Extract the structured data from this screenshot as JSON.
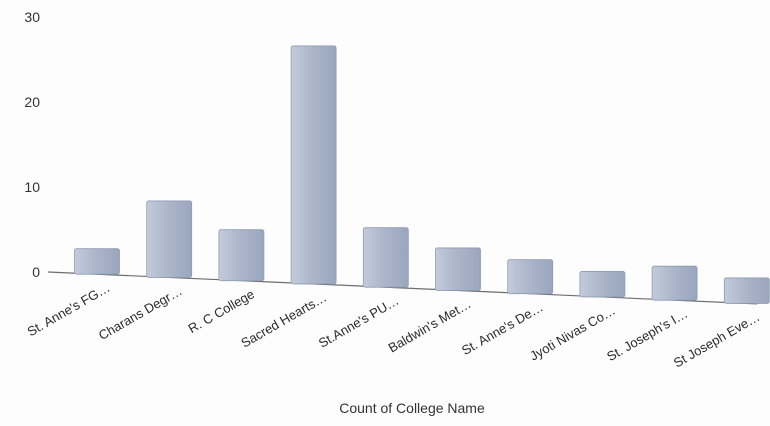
{
  "chart_data": {
    "type": "bar",
    "categories": [
      "St. Anne's FG…",
      "Charans Degr…",
      "R. C College",
      "Sacred Hearts…",
      "St.Anne's PU…",
      "Baldwin's Met…",
      "St. Anne's De…",
      "Jyoti Nivas Co…",
      "St. Joseph's I…",
      "St Joseph Eve…"
    ],
    "values": [
      3,
      9,
      6,
      28,
      7,
      5,
      4,
      3,
      4,
      3
    ],
    "xlabel": "Count of College Name",
    "ylabel": "",
    "yticks": [
      0,
      10,
      20,
      30
    ],
    "ylim": [
      0,
      30
    ],
    "grid": false,
    "bar_color": "#a9b4c9",
    "bar_edge_color": "#8f9bb2",
    "axis_color": "#6e6e6e"
  }
}
